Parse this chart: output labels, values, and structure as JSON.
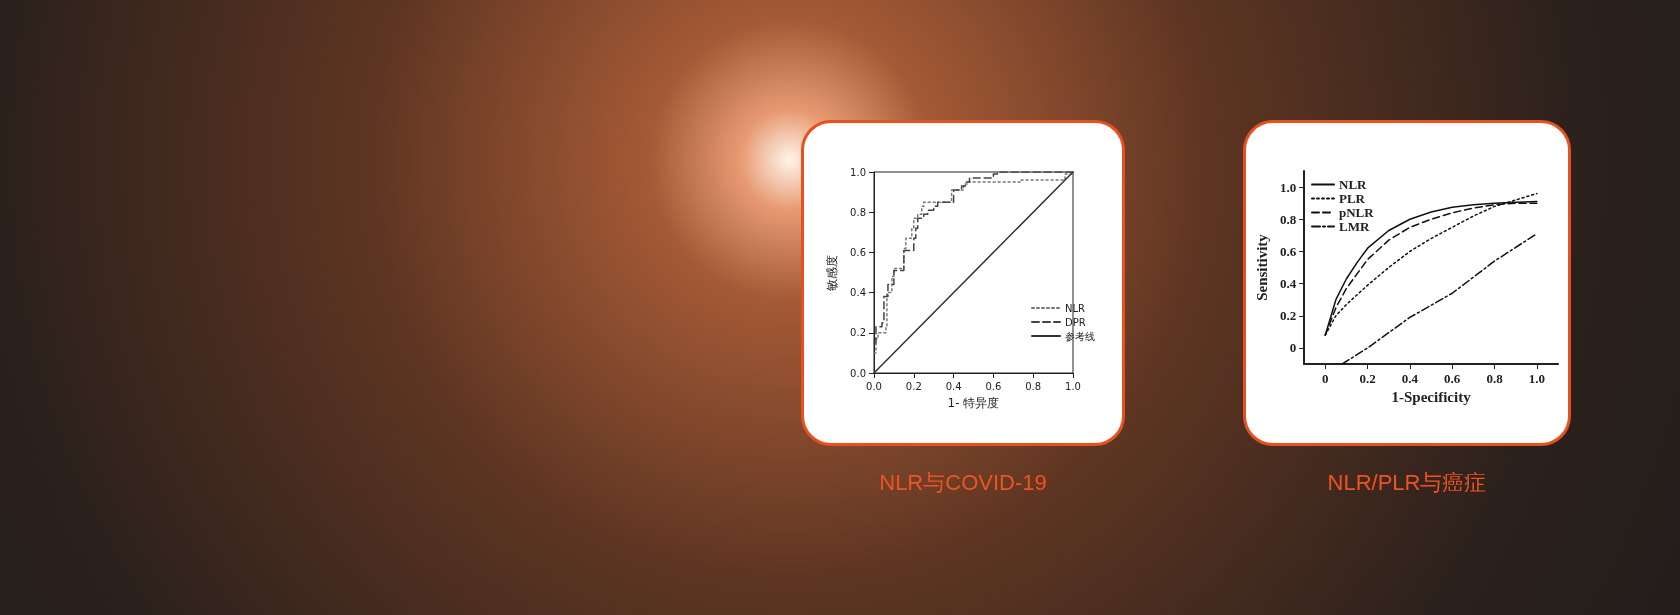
{
  "chart_data": [
    {
      "type": "line",
      "title": "NLR与COVID-19",
      "xlabel": "1- 特异度",
      "ylabel": "敏感度",
      "xlim": [
        0,
        1
      ],
      "ylim": [
        0,
        1
      ],
      "xticks": [
        {
          "value": 0,
          "label": "0.0"
        },
        {
          "value": 0.2,
          "label": "0.2"
        },
        {
          "value": 0.4,
          "label": "0.4"
        },
        {
          "value": 0.6,
          "label": "0.6"
        },
        {
          "value": 0.8,
          "label": "0.8"
        },
        {
          "value": 1,
          "label": "1.0"
        }
      ],
      "yticks": [
        {
          "value": 0,
          "label": "0.0"
        },
        {
          "value": 0.2,
          "label": "0.2"
        },
        {
          "value": 0.4,
          "label": "0.4"
        },
        {
          "value": 0.6,
          "label": "0.6"
        },
        {
          "value": 0.8,
          "label": "0.8"
        },
        {
          "value": 1,
          "label": "1.0"
        }
      ],
      "grid": false,
      "legend": "right",
      "marker": "none",
      "series": [
        {
          "name": "NLR",
          "type": "step",
          "color": "#777777",
          "line_style": "dotted",
          "x": [
            0,
            0.01,
            0.02,
            0.06,
            0.065,
            0.09,
            0.1,
            0.15,
            0.16,
            0.19,
            0.2,
            0.22,
            0.24,
            0.25,
            0.38,
            0.39,
            0.45,
            0.47,
            0.73,
            0.74,
            0.95,
            0.96,
            1
          ],
          "values": [
            0.1,
            0.17,
            0.2,
            0.23,
            0.4,
            0.48,
            0.52,
            0.62,
            0.67,
            0.72,
            0.77,
            0.79,
            0.83,
            0.85,
            0.85,
            0.91,
            0.94,
            0.95,
            0.95,
            0.96,
            0.96,
            0.99,
            1
          ]
        },
        {
          "name": "DPR",
          "type": "step",
          "color": "#444444",
          "line_style": "dashed",
          "x": [
            0,
            0.01,
            0.04,
            0.05,
            0.07,
            0.1,
            0.15,
            0.19,
            0.2,
            0.21,
            0.22,
            0.25,
            0.27,
            0.3,
            0.32,
            0.38,
            0.4,
            0.44,
            0.46,
            0.48,
            0.58,
            0.6,
            0.62,
            1
          ],
          "values": [
            0.15,
            0.23,
            0.25,
            0.38,
            0.44,
            0.51,
            0.61,
            0.61,
            0.67,
            0.72,
            0.77,
            0.79,
            0.81,
            0.83,
            0.85,
            0.85,
            0.91,
            0.93,
            0.95,
            0.97,
            0.97,
            0.99,
            1,
            1
          ]
        },
        {
          "name": "参考线",
          "color": "#333333",
          "line_style": "solid",
          "x": [
            0,
            1
          ],
          "values": [
            0,
            1
          ]
        }
      ]
    },
    {
      "type": "line",
      "title": "NLR/PLR与癌症",
      "xlabel": "1-Specificity",
      "ylabel": "Sensitivity",
      "xlim": [
        -0.1,
        1.1
      ],
      "ylim": [
        -0.1,
        1.1
      ],
      "xticks": [
        0,
        0.2,
        0.4,
        0.6,
        0.8,
        {
          "value": 1,
          "label": "1.0"
        }
      ],
      "yticks": [
        0,
        0.2,
        0.4,
        0.6,
        0.8,
        {
          "value": 1,
          "label": "1.0"
        }
      ],
      "grid": false,
      "legend": "top left",
      "marker": "none",
      "series": [
        {
          "name": "NLR",
          "color": "#111111",
          "line_style": "solid",
          "x": [
            0,
            0.05,
            0.1,
            0.15,
            0.2,
            0.3,
            0.4,
            0.5,
            0.6,
            0.7,
            0.8,
            0.9,
            1
          ],
          "values": [
            0.08,
            0.3,
            0.43,
            0.53,
            0.62,
            0.73,
            0.8,
            0.845,
            0.875,
            0.89,
            0.9,
            0.905,
            0.91
          ]
        },
        {
          "name": "PLR",
          "color": "#111111",
          "line_style": "dotted",
          "x": [
            0,
            0.05,
            0.1,
            0.2,
            0.3,
            0.4,
            0.5,
            0.6,
            0.7,
            0.8,
            0.9,
            1
          ],
          "values": [
            0.08,
            0.2,
            0.27,
            0.39,
            0.5,
            0.6,
            0.68,
            0.75,
            0.82,
            0.88,
            0.92,
            0.96
          ]
        },
        {
          "name": "pNLR",
          "color": "#111111",
          "line_style": "dashed",
          "x": [
            0,
            0.05,
            0.1,
            0.2,
            0.3,
            0.4,
            0.5,
            0.6,
            0.7,
            0.8,
            0.9,
            1
          ],
          "values": [
            0.08,
            0.25,
            0.37,
            0.55,
            0.67,
            0.75,
            0.8,
            0.84,
            0.87,
            0.89,
            0.9,
            0.9
          ]
        },
        {
          "name": "LMR",
          "color": "#111111",
          "line_style": "dashdot",
          "x": [
            0.08,
            0.2,
            0.4,
            0.6,
            0.8,
            1
          ],
          "values": [
            -0.1,
            0,
            0.19,
            0.34,
            0.54,
            0.71
          ]
        }
      ]
    }
  ]
}
